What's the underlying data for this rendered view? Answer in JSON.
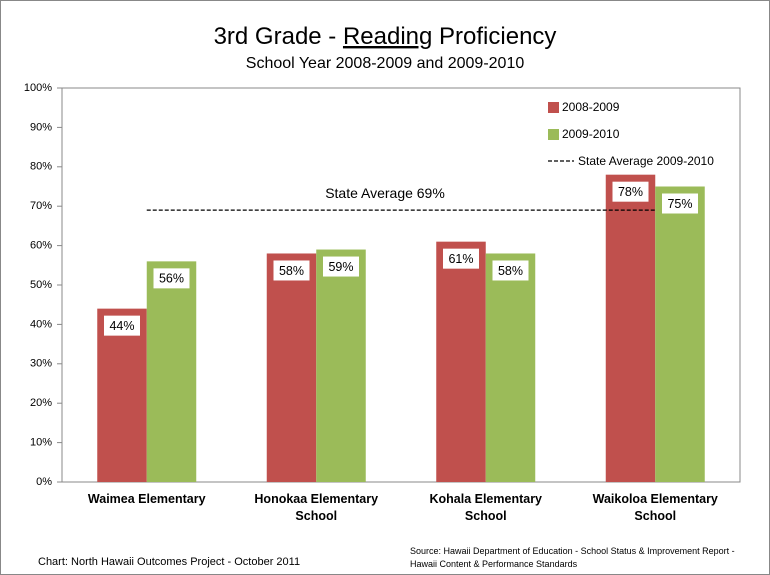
{
  "chart_data": {
    "type": "bar",
    "title": [
      {
        "text": "3rd Grade - "
      },
      {
        "text": "Reading",
        "underline": true
      },
      {
        "text": " Proficiency"
      }
    ],
    "subtitle": "School Year 2008-2009 and 2009-2010",
    "categories": [
      "Waimea Elementary",
      "Honokaa Elementary School",
      "Kohala Elementary School",
      "Waikoloa Elementary School"
    ],
    "series": [
      {
        "name": "2008-2009",
        "color": "#c0504d",
        "values": [
          44,
          58,
          61,
          78
        ],
        "value_labels": [
          "44%",
          "58%",
          "61%",
          "78%"
        ]
      },
      {
        "name": "2009-2010",
        "color": "#9bbb59",
        "values": [
          56,
          59,
          58,
          75
        ],
        "value_labels": [
          "56%",
          "59%",
          "58%",
          "75%"
        ]
      }
    ],
    "reference": {
      "value": 69,
      "label": "State Average 69%",
      "legend": "State Average 2009-2010"
    },
    "ylim": [
      0,
      100
    ],
    "yticks": [
      {
        "value": 0,
        "label": "0%"
      },
      {
        "value": 10,
        "label": "10%"
      },
      {
        "value": 20,
        "label": "20%"
      },
      {
        "value": 30,
        "label": "30%"
      },
      {
        "value": 40,
        "label": "40%"
      },
      {
        "value": 50,
        "label": "50%"
      },
      {
        "value": 60,
        "label": "60%"
      },
      {
        "value": 70,
        "label": "70%"
      },
      {
        "value": 80,
        "label": "80%"
      },
      {
        "value": 90,
        "label": "90%"
      },
      {
        "value": 100,
        "label": "100%"
      }
    ],
    "grid": false,
    "legend": "top-right",
    "footer": {
      "credit": "Chart:  North Hawaii Outcomes Project - October 2011",
      "source": "Source: Hawaii Department of Education - School Status & Improvement Report - Hawaii Content & Performance Standards"
    }
  }
}
